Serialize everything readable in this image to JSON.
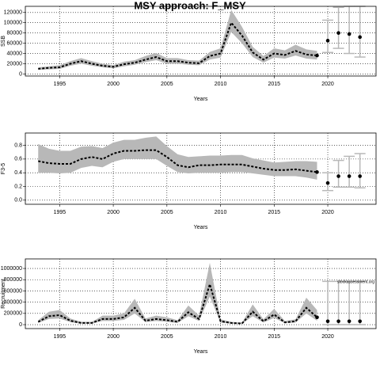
{
  "chart_data": [
    {
      "type": "line",
      "title": "MSY approach: F_MSY",
      "xlabel": "Years",
      "ylabel": "SSB",
      "x": [
        1993,
        1994,
        1995,
        1996,
        1997,
        1998,
        1999,
        2000,
        2001,
        2002,
        2003,
        2004,
        2005,
        2006,
        2007,
        2008,
        2009,
        2010,
        2011,
        2012,
        2013,
        2014,
        2015,
        2016,
        2017,
        2018,
        2019
      ],
      "values": [
        10000,
        12000,
        13000,
        20000,
        25000,
        20000,
        16000,
        14000,
        19000,
        22000,
        28000,
        33000,
        25000,
        25000,
        22000,
        21000,
        35000,
        40000,
        100000,
        75000,
        42000,
        28000,
        40000,
        37000,
        45000,
        38000,
        36000
      ],
      "lower": [
        8000,
        9000,
        10000,
        16000,
        20000,
        16000,
        13000,
        11000,
        15000,
        18000,
        23000,
        27000,
        20000,
        20000,
        18000,
        17000,
        28000,
        32000,
        82000,
        60000,
        33000,
        22000,
        32000,
        30000,
        36000,
        30000,
        28000
      ],
      "upper": [
        13000,
        15000,
        17000,
        25000,
        31000,
        25000,
        20000,
        17000,
        24000,
        27000,
        35000,
        41000,
        31000,
        31000,
        27000,
        26000,
        43000,
        50000,
        125000,
        92000,
        53000,
        35000,
        50000,
        46000,
        57000,
        48000,
        45000
      ],
      "proj_x": [
        2020,
        2021,
        2022,
        2023
      ],
      "proj_values": [
        65000,
        80000,
        78000,
        72000
      ],
      "proj_lower": [
        42000,
        50000,
        40000,
        33000
      ],
      "proj_upper": [
        105000,
        130000,
        132000,
        132000
      ],
      "xlim": [
        1991.8,
        2024.5
      ],
      "xticks": [
        1995,
        2000,
        2005,
        2010,
        2015,
        2020
      ],
      "ylim": [
        -4000,
        132000
      ],
      "yticks": [
        0,
        20000,
        40000,
        60000,
        80000,
        100000,
        120000
      ],
      "grid": true,
      "color": "#000000",
      "band_color": "#b8b8b8"
    },
    {
      "type": "line",
      "xlabel": "Years",
      "ylabel": "F3-5",
      "x": [
        1993,
        1994,
        1995,
        1996,
        1997,
        1998,
        1999,
        2000,
        2001,
        2002,
        2003,
        2004,
        2005,
        2006,
        2007,
        2008,
        2009,
        2010,
        2011,
        2012,
        2013,
        2014,
        2015,
        2016,
        2017,
        2018,
        2019
      ],
      "values": [
        0.57,
        0.54,
        0.53,
        0.53,
        0.6,
        0.63,
        0.6,
        0.68,
        0.72,
        0.72,
        0.73,
        0.73,
        0.63,
        0.51,
        0.48,
        0.51,
        0.51,
        0.52,
        0.52,
        0.52,
        0.49,
        0.46,
        0.44,
        0.44,
        0.45,
        0.43,
        0.41
      ],
      "lower": [
        0.4,
        0.4,
        0.39,
        0.4,
        0.47,
        0.5,
        0.48,
        0.56,
        0.6,
        0.6,
        0.6,
        0.6,
        0.5,
        0.41,
        0.39,
        0.4,
        0.4,
        0.4,
        0.41,
        0.41,
        0.39,
        0.37,
        0.35,
        0.35,
        0.35,
        0.33,
        0.3
      ],
      "upper": [
        0.82,
        0.75,
        0.72,
        0.72,
        0.78,
        0.79,
        0.76,
        0.84,
        0.88,
        0.88,
        0.91,
        0.93,
        0.79,
        0.67,
        0.63,
        0.64,
        0.65,
        0.65,
        0.66,
        0.66,
        0.61,
        0.58,
        0.55,
        0.56,
        0.57,
        0.57,
        0.56
      ],
      "proj_x": [
        2020,
        2021,
        2022,
        2023
      ],
      "proj_values": [
        0.25,
        0.35,
        0.35,
        0.35
      ],
      "proj_lower": [
        0.14,
        0.19,
        0.19,
        0.18
      ],
      "proj_upper": [
        0.4,
        0.58,
        0.64,
        0.68
      ],
      "xlim": [
        1991.8,
        2024.5
      ],
      "xticks": [
        1995,
        2000,
        2005,
        2010,
        2015,
        2020
      ],
      "ylim": [
        -0.06,
        0.98
      ],
      "yticks": [
        {
          "value": 0,
          "label": "0.0"
        },
        0.2,
        0.4,
        0.6,
        0.8
      ],
      "grid": true,
      "color": "#000000",
      "band_color": "#b8b8b8"
    },
    {
      "type": "line",
      "xlabel": "Years",
      "ylabel": "Recruitment",
      "annotation": "stockassessment.org",
      "x": [
        1993,
        1994,
        1995,
        1996,
        1997,
        1998,
        1999,
        2000,
        2001,
        2002,
        2003,
        2004,
        2005,
        2006,
        2007,
        2008,
        2009,
        2010,
        2011,
        2012,
        2013,
        2014,
        2015,
        2016,
        2017,
        2018,
        2019
      ],
      "values": [
        50000,
        150000,
        170000,
        70000,
        30000,
        30000,
        100000,
        100000,
        130000,
        300000,
        70000,
        100000,
        80000,
        50000,
        220000,
        100000,
        720000,
        60000,
        30000,
        20000,
        230000,
        60000,
        180000,
        40000,
        60000,
        300000,
        130000
      ],
      "lower": [
        30000,
        100000,
        110000,
        45000,
        18000,
        18000,
        65000,
        65000,
        85000,
        200000,
        45000,
        65000,
        50000,
        30000,
        150000,
        65000,
        500000,
        38000,
        18000,
        12000,
        150000,
        38000,
        120000,
        25000,
        38000,
        200000,
        70000
      ],
      "upper": [
        80000,
        230000,
        260000,
        110000,
        50000,
        50000,
        160000,
        160000,
        200000,
        460000,
        110000,
        160000,
        130000,
        80000,
        340000,
        160000,
        1100000,
        95000,
        50000,
        35000,
        360000,
        95000,
        280000,
        65000,
        95000,
        480000,
        260000
      ],
      "proj_x": [
        2020,
        2021,
        2022,
        2023
      ],
      "proj_values": [
        60000,
        60000,
        60000,
        60000
      ],
      "proj_lower": [
        0,
        0,
        0,
        0
      ],
      "proj_upper": [
        770000,
        770000,
        770000,
        770000
      ],
      "xlim": [
        1991.8,
        2024.5
      ],
      "xticks": [
        1995,
        2000,
        2005,
        2010,
        2015,
        2020
      ],
      "ylim": [
        -70000,
        1170000
      ],
      "yticks": [
        0,
        200000,
        400000,
        600000,
        800000,
        1000000
      ],
      "grid": true,
      "color": "#000000",
      "band_color": "#b8b8b8"
    }
  ]
}
